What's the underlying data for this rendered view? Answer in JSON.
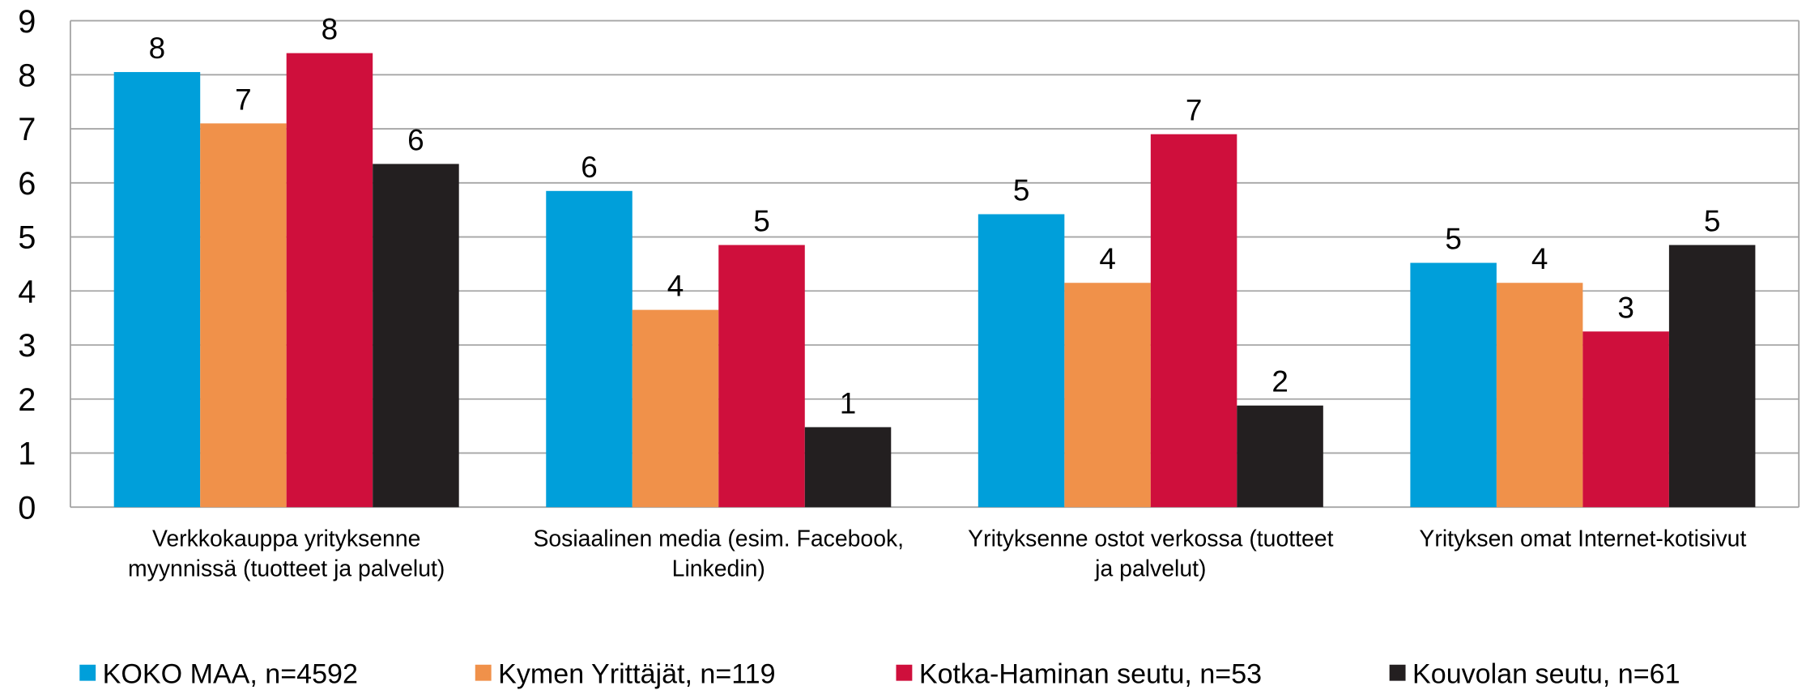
{
  "chart_data": {
    "type": "bar",
    "categories": [
      "Verkkokauppa yrityksenne\nmyynnissä (tuotteet ja palvelut)",
      "Sosiaalinen media (esim. Facebook,\nLinkedin)",
      "Yrityksenne ostot verkossa (tuotteet\nja palvelut)",
      "Yrityksen omat Internet-kotisivut"
    ],
    "series": [
      {
        "name": "KOKO MAA, n=4592",
        "color": "#009fda",
        "values": [
          8.05,
          5.85,
          5.42,
          4.52
        ],
        "value_labels": [
          "8",
          "6",
          "5",
          "5"
        ]
      },
      {
        "name": "Kymen Yrittäjät, n=119",
        "color": "#f0914a",
        "values": [
          7.1,
          3.65,
          4.15,
          4.15
        ],
        "value_labels": [
          "7",
          "4",
          "4",
          "4"
        ]
      },
      {
        "name": "Kotka-Haminan seutu, n=53",
        "color": "#cf0f3c",
        "values": [
          8.4,
          4.85,
          6.9,
          3.25
        ],
        "value_labels": [
          "8",
          "5",
          "7",
          "3"
        ]
      },
      {
        "name": "Kouvolan seutu, n=61",
        "color": "#231f20",
        "values": [
          6.35,
          1.48,
          1.88,
          4.85
        ],
        "value_labels": [
          "6",
          "1",
          "2",
          "5"
        ]
      }
    ],
    "ylim": [
      0,
      9
    ],
    "yticks": [
      0,
      1,
      2,
      3,
      4,
      5,
      6,
      7,
      8,
      9
    ],
    "grid": true,
    "legend": "bottom"
  }
}
